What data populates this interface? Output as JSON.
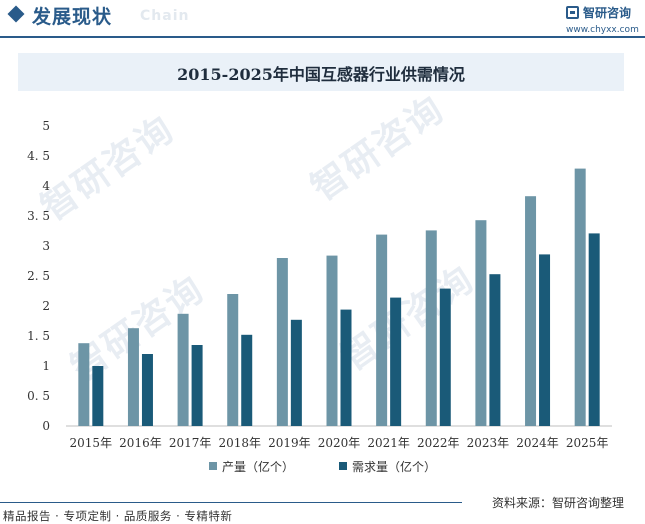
{
  "header": {
    "title": "发展现状",
    "subtitle": "Chain",
    "brand_name": "智研咨询",
    "brand_url": "www.chyxx.com"
  },
  "watermark": "智研咨询",
  "colors": {
    "accent": "#2a5b8a",
    "series_production": "#6d95a6",
    "series_demand": "#1a5a78",
    "title_band": "#eaf1f8"
  },
  "chart_data": {
    "type": "bar",
    "title": "2015-2025年中国互感器行业供需情况",
    "xlabel": "",
    "ylabel": "",
    "ylim": [
      0,
      5
    ],
    "y_ticks": [
      "0",
      "0. 5",
      "1",
      "1. 5",
      "2",
      "2. 5",
      "3",
      "3. 5",
      "4",
      "4. 5",
      "5"
    ],
    "categories": [
      "2015年",
      "2016年",
      "2017年",
      "2018年",
      "2019年",
      "2020年",
      "2021年",
      "2022年",
      "2023年",
      "2024年",
      "2025年"
    ],
    "series": [
      {
        "name": "产量（亿个）",
        "values": [
          1.38,
          1.63,
          1.87,
          2.2,
          2.8,
          2.84,
          3.19,
          3.26,
          3.43,
          3.83,
          4.29
        ]
      },
      {
        "name": "需求量（亿个）",
        "values": [
          1.0,
          1.2,
          1.35,
          1.52,
          1.77,
          1.94,
          2.14,
          2.29,
          2.53,
          2.86,
          3.21
        ]
      }
    ],
    "grid": false,
    "legend_position": "bottom"
  },
  "footer": {
    "left": "精品报告 · 专项定制 · 品质服务 · 专精特新",
    "right": "资料来源：智研咨询整理"
  }
}
